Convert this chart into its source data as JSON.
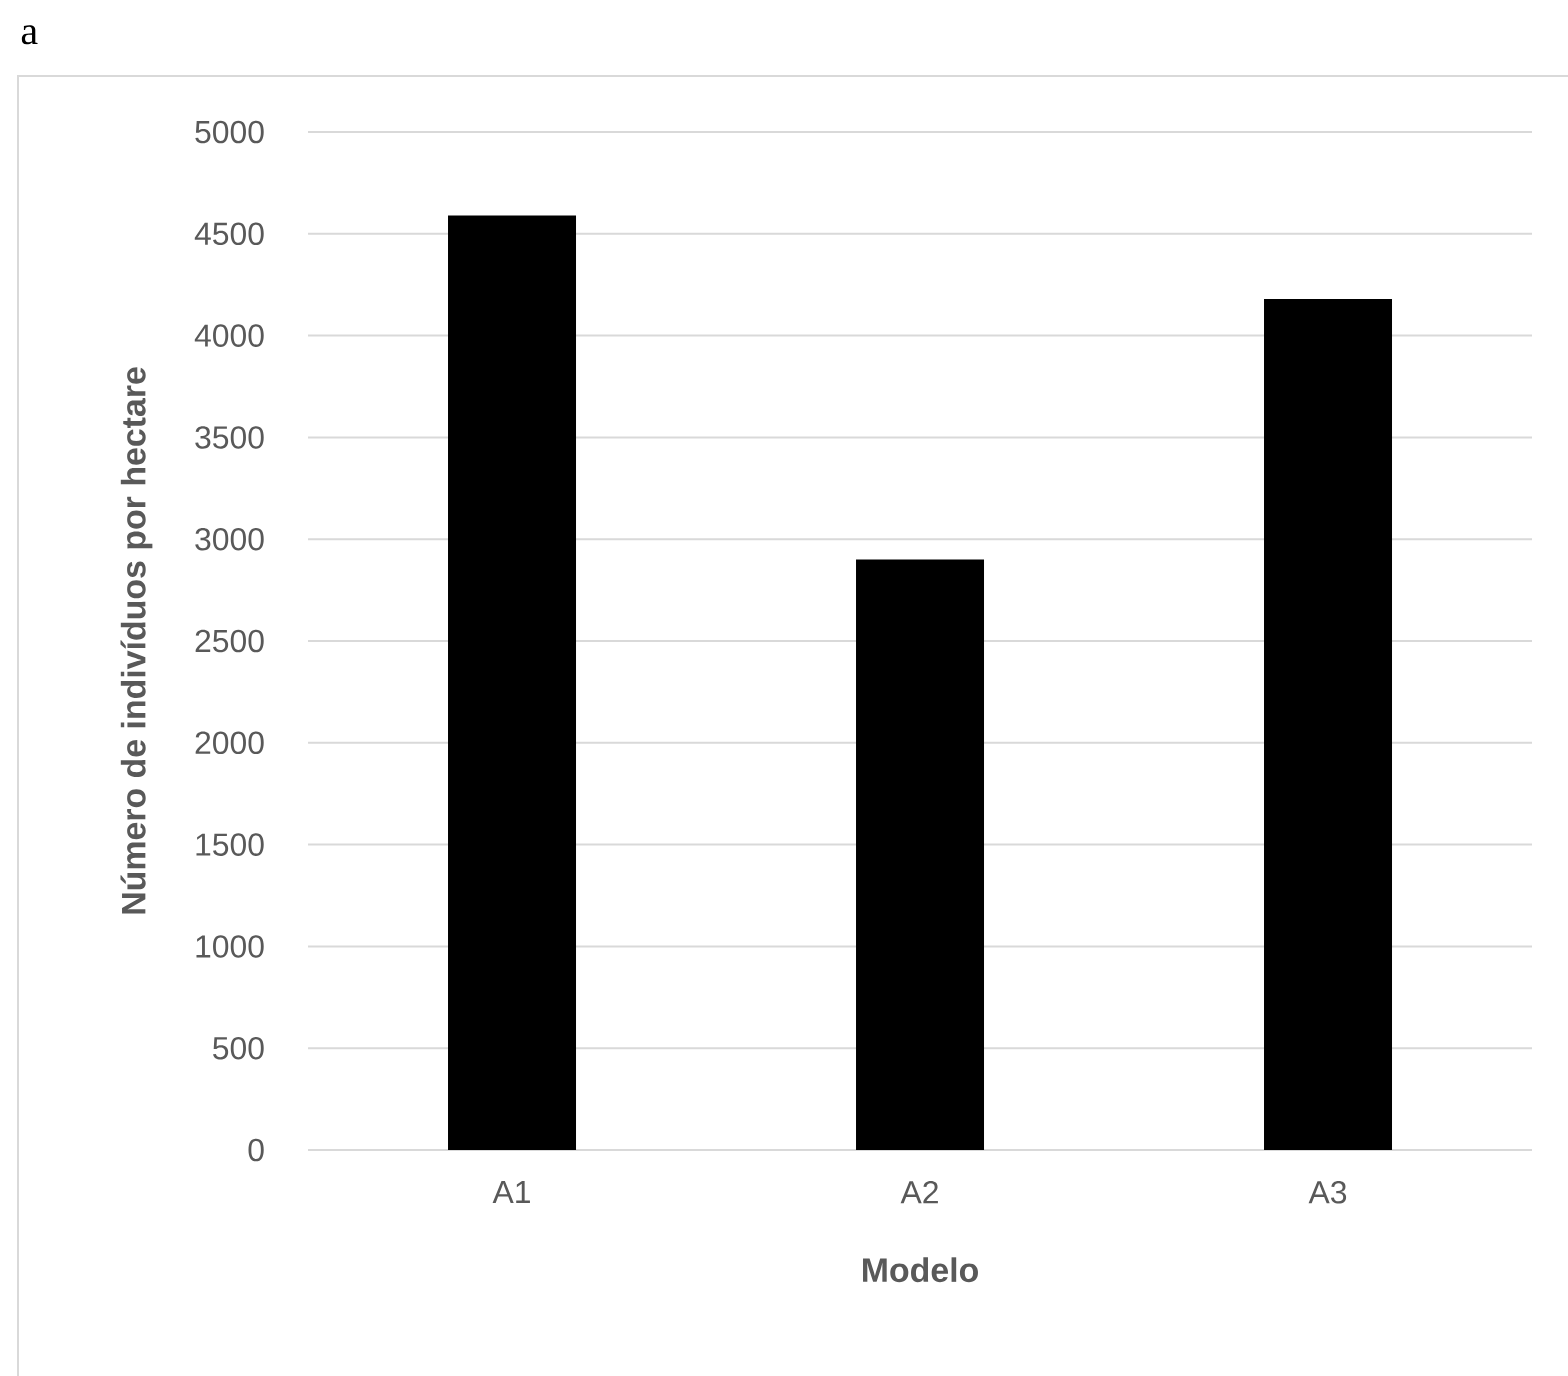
{
  "chart_data": {
    "type": "bar",
    "title": "a",
    "xlabel": "Modelo",
    "ylabel": "Número de indivíduos por hectare",
    "categories": [
      "A1",
      "A2",
      "A3"
    ],
    "values": [
      4590,
      2900,
      4180
    ],
    "color": "#000000",
    "ylim": [
      0,
      5000
    ],
    "yticks": [
      0,
      500,
      1000,
      1500,
      2000,
      2500,
      3000,
      3500,
      4000,
      4500,
      5000
    ],
    "grid": "y"
  }
}
